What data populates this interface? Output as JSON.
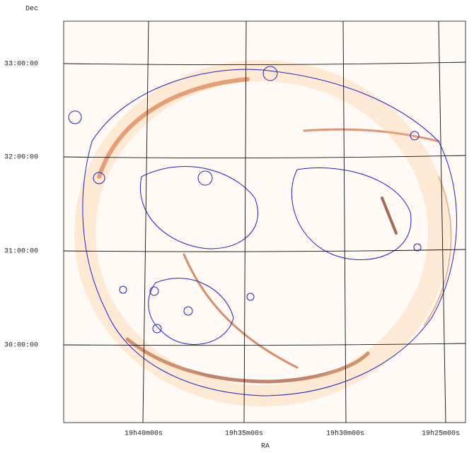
{
  "figure": {
    "y_axis_label": "Dec",
    "x_axis_label": "RA",
    "y_tick_labels": [
      "33:00:00",
      "32:00:00",
      "31:00:00",
      "30:00:00"
    ],
    "x_tick_labels": [
      "19h40m00s",
      "19h35m00s",
      "19h30m00s",
      "19h25m00s"
    ]
  }
}
